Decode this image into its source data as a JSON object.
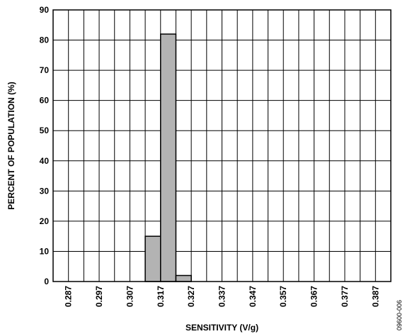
{
  "chart_data": {
    "type": "bar",
    "xlabel": "SENSITIVITY (V/g)",
    "ylabel": "PERCENT OF POPULATION (%)",
    "ylim": [
      0,
      90
    ],
    "y_ticks": [
      "0",
      "10",
      "20",
      "30",
      "40",
      "50",
      "60",
      "70",
      "80",
      "90"
    ],
    "x_ticks": [
      "0.287",
      "0.297",
      "0.307",
      "0.317",
      "0.327",
      "0.337",
      "0.347",
      "0.357",
      "0.367",
      "0.377",
      "0.387"
    ],
    "bar_width": 0.005,
    "bars": [
      {
        "start": 0.312,
        "value": 15
      },
      {
        "start": 0.317,
        "value": 82
      },
      {
        "start": 0.322,
        "value": 2
      }
    ],
    "grid": true,
    "figure_code": "09600-006",
    "colors": {
      "bar_fill": "#b3b3b3",
      "line": "#000000"
    }
  }
}
